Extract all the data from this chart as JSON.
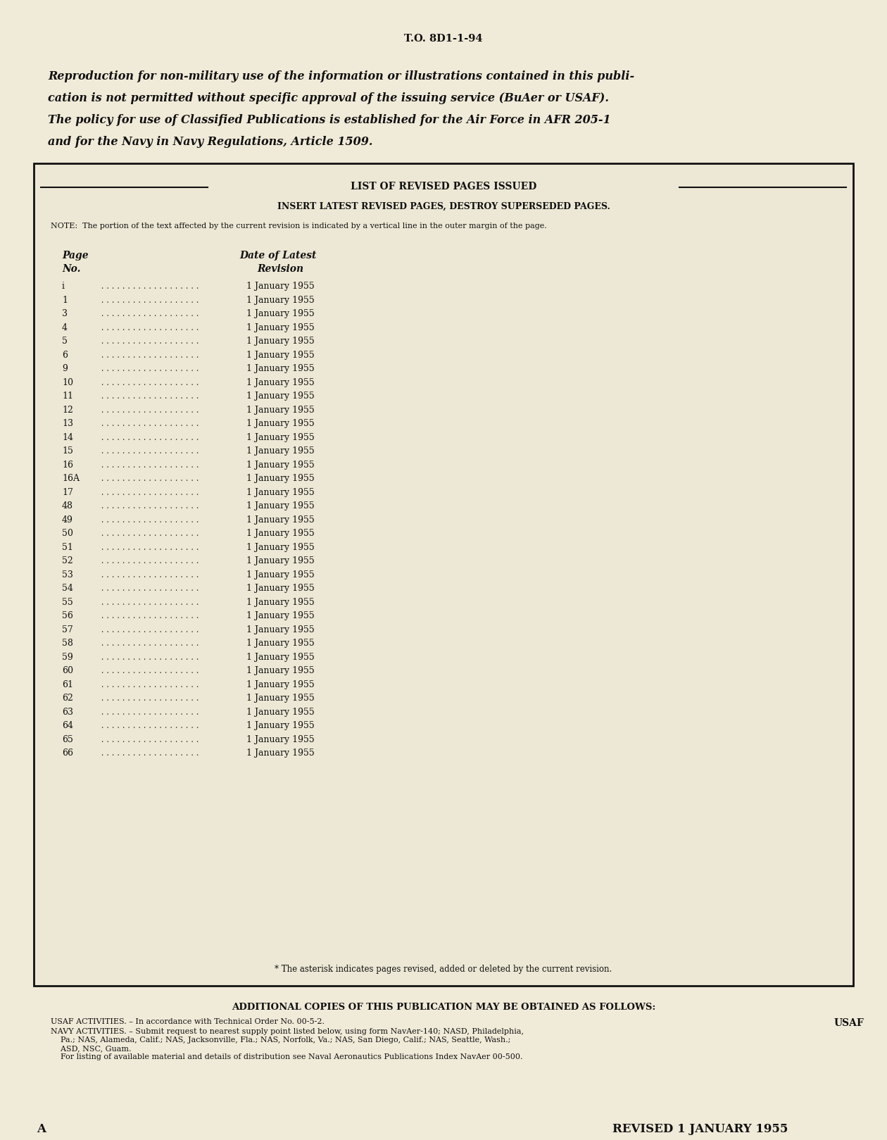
{
  "background_color": "#f0ead8",
  "header_text": "T.O. 8D1-1-94",
  "intro_line1": "Reproduction for non-military use of the information or illustrations contained in this publi-",
  "intro_line2": "cation is not permitted without specific approval of the issuing service (BuAer or USAF).",
  "intro_line3": "The policy for use of Classified Publications is established for the Air Force in AFR 205-1",
  "intro_line4": "and for the Navy in Navy Regulations, Article 1509.",
  "box_title": "LIST OF REVISED PAGES ISSUED",
  "box_subtitle": "INSERT LATEST REVISED PAGES, DESTROY SUPERSEDED PAGES.",
  "note_text": "NOTE:  The portion of the text affected by the current revision is indicated by a vertical line in the outer margin of the page.",
  "col_header1": "Page",
  "col_header2": "Date of Latest",
  "col_header3": "No.",
  "col_header4": "Revision",
  "page_numbers": [
    "i",
    "1",
    "3",
    "4",
    "5",
    "6",
    "9",
    "10",
    "11",
    "12",
    "13",
    "14",
    "15",
    "16",
    "16A",
    "17",
    "48",
    "49",
    "50",
    "51",
    "52",
    "53",
    "54",
    "55",
    "56",
    "57",
    "58",
    "59",
    "60",
    "61",
    "62",
    "63",
    "64",
    "65",
    "66"
  ],
  "dates": [
    "1 January 1955",
    "1 January 1955",
    "1 January 1955",
    "1 January 1955",
    "1 January 1955",
    "1 January 1955",
    "1 January 1955",
    "1 January 1955",
    "1 January 1955",
    "1 January 1955",
    "1 January 1955",
    "1 January 1955",
    "1 January 1955",
    "1 January 1955",
    "1 January 1955",
    "1 January 1955",
    "1 January 1955",
    "1 January 1955",
    "1 January 1955",
    "1 January 1955",
    "1 January 1955",
    "1 January 1955",
    "1 January 1955",
    "1 January 1955",
    "1 January 1955",
    "1 January 1955",
    "1 January 1955",
    "1 January 1955",
    "1 January 1955",
    "1 January 1955",
    "1 January 1955",
    "1 January 1955",
    "1 January 1955",
    "1 January 1955",
    "1 January 1955"
  ],
  "footnote_text": "* The asterisk indicates pages revised, added or deleted by the current revision.",
  "additional_copies_title": "ADDITIONAL COPIES OF THIS PUBLICATION MAY BE OBTAINED AS FOLLOWS:",
  "usaf_label": "USAF",
  "usaf_line1": "USAF ACTIVITIES. – In accordance with Technical Order No. 00-5-2.",
  "navy_line1": "NAVY ACTIVITIES. – Submit request to nearest supply point listed below, using form NavAer-140; NASD, Philadelphia,",
  "navy_line2": "    Pa.; NAS, Alameda, Calif.; NAS, Jacksonville, Fla.; NAS, Norfolk, Va.; NAS, San Diego, Calif.; NAS, Seattle, Wash.;",
  "navy_line3": "    ASD, NSC, Guam.",
  "navy_line4": "    For listing of available material and details of distribution see Naval Aeronautics Publications Index NavAer 00-500.",
  "page_label": "A",
  "revised_label": "REVISED 1 JANUARY 1955",
  "dots": " . . . . . . . . . . . . . . . . "
}
